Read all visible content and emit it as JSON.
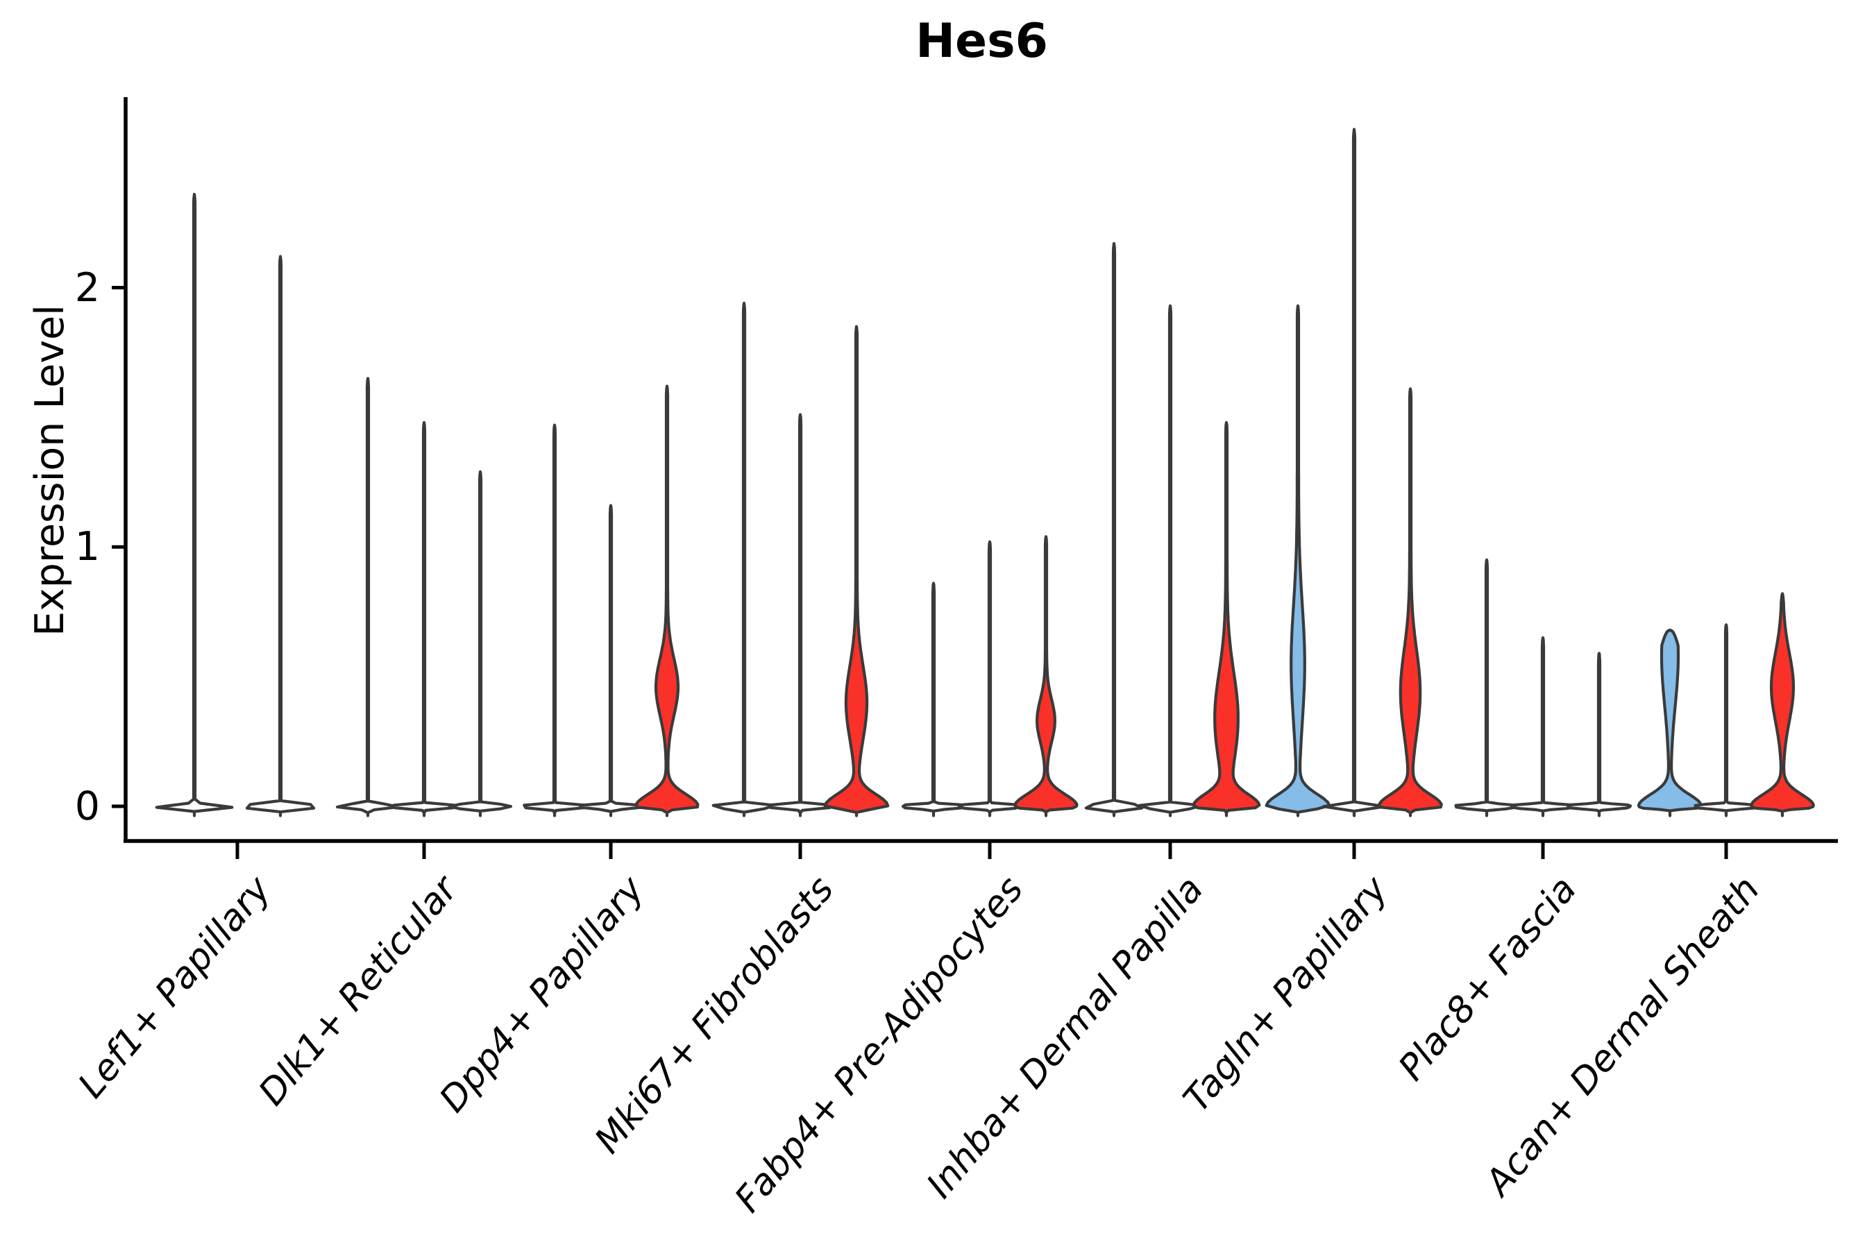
{
  "chart_data": {
    "type": "violin",
    "title": "Hes6",
    "ylabel": "Expression Level",
    "yticks": [
      0,
      1,
      2
    ],
    "ylim": [
      -0.07,
      2.74
    ],
    "grid": false,
    "legend": "none",
    "categories": [
      "Lef1+ Papillary",
      "Dlk1+ Reticular",
      "Dpp4+ Papillary",
      "Mki67+ Fibroblasts",
      "Fabp4+ Pre-Adipocytes",
      "Inhba+ Dermal Papilla",
      "Tagln+ Papillary",
      "Plac8+ Fascia",
      "Acan+ Dermal Sheath"
    ],
    "groups": [
      {
        "category": "Lef1+ Papillary",
        "violins": [
          {
            "color": "dark",
            "max": 2.36
          },
          {
            "color": "dark",
            "max": 2.12
          }
        ]
      },
      {
        "category": "Dlk1+ Reticular",
        "violins": [
          {
            "color": "dark",
            "max": 1.65
          },
          {
            "color": "dark",
            "max": 1.48
          },
          {
            "color": "dark",
            "max": 1.29
          }
        ]
      },
      {
        "category": "Dpp4+ Papillary",
        "violins": [
          {
            "color": "dark",
            "max": 1.47
          },
          {
            "color": "dark",
            "max": 1.16
          },
          {
            "color": "red",
            "max": 1.62,
            "body": {
              "center": 0.46,
              "sigma": 0.155,
              "width_rel": 0.34
            }
          }
        ]
      },
      {
        "category": "Mki67+ Fibroblasts",
        "violins": [
          {
            "color": "dark",
            "max": 1.94
          },
          {
            "color": "dark",
            "max": 1.51
          },
          {
            "color": "red",
            "max": 1.85,
            "body": {
              "center": 0.4,
              "sigma": 0.2,
              "width_rel": 0.32
            }
          }
        ]
      },
      {
        "category": "Fabp4+ Pre-Adipocytes",
        "violins": [
          {
            "color": "dark",
            "max": 0.86
          },
          {
            "color": "dark",
            "max": 1.02
          },
          {
            "color": "red",
            "max": 1.04,
            "body": {
              "center": 0.33,
              "sigma": 0.115,
              "width_rel": 0.27
            }
          }
        ]
      },
      {
        "category": "Inhba+ Dermal Papilla",
        "violins": [
          {
            "color": "dark",
            "max": 2.17
          },
          {
            "color": "dark",
            "max": 1.93
          },
          {
            "color": "red",
            "max": 1.48,
            "body": {
              "center": 0.34,
              "sigma": 0.25,
              "width_rel": 0.36
            }
          }
        ]
      },
      {
        "category": "Tagln+ Papillary",
        "violins": [
          {
            "color": "blue",
            "max": 1.93,
            "body": {
              "center": 0.55,
              "sigma": 0.32,
              "width_rel": 0.2
            }
          },
          {
            "color": "dark",
            "max": 2.61
          },
          {
            "color": "red",
            "max": 1.61,
            "body": {
              "center": 0.44,
              "sigma": 0.23,
              "width_rel": 0.3
            }
          }
        ]
      },
      {
        "category": "Plac8+ Fascia",
        "violins": [
          {
            "color": "dark",
            "max": 0.95
          },
          {
            "color": "dark",
            "max": 0.65
          },
          {
            "color": "dark",
            "max": 0.59
          }
        ]
      },
      {
        "category": "Acan+ Dermal Sheath",
        "violins": [
          {
            "color": "blue",
            "max": 0.68,
            "cap": true,
            "body": {
              "center": 0.58,
              "sigma": 0.27,
              "width_rel": 0.25
            }
          },
          {
            "color": "dark",
            "max": 0.7
          },
          {
            "color": "red",
            "max": 0.82,
            "body": {
              "center": 0.46,
              "sigma": 0.185,
              "width_rel": 0.34
            }
          }
        ]
      }
    ],
    "palette": {
      "red": "#F93129",
      "blue": "#85BCE8",
      "outline": "#3A3A3A",
      "axis": "#000000",
      "background": "#FFFFFF"
    }
  }
}
